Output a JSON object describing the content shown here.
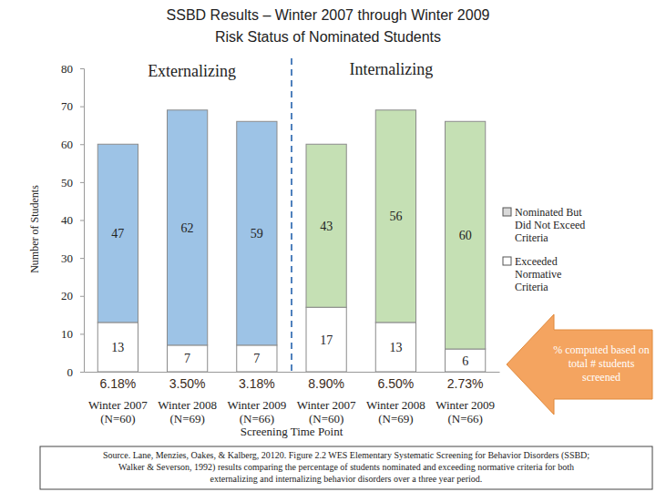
{
  "chart_data": {
    "type": "bar",
    "stacked": true,
    "data_labels": true,
    "title": "SSBD Results – Winter 2007 through Winter 2009",
    "subtitle": "Risk Status of Nominated Students",
    "y_label": "Number of Students",
    "x_label": "Screening Time Point",
    "categories": [
      "Winter 2007\n(N=60)",
      "Winter 2008\n(N=69)",
      "Winter 2009\n(N=66)",
      "Winter 2007\n(N=60)",
      "Winter 2008\n(N=69)",
      "Winter 2009\n(N=66)"
    ],
    "series": [
      {
        "name": "Nominated But Did Not Exceed Criteria",
        "color": "#d9d9d9",
        "colors": [
          "#9dc3e6",
          "#9dc3e6",
          "#9dc3e6",
          "#c5e0b4",
          "#c5e0b4",
          "#c5e0b4"
        ],
        "values": [
          47,
          62,
          59,
          43,
          56,
          60
        ]
      },
      {
        "name": "Exceeded Normative Criteria",
        "color": "#ffffff",
        "values": [
          13,
          7,
          7,
          17,
          13,
          6
        ]
      }
    ],
    "ylim": [
      0,
      80
    ],
    "yticks": [
      0,
      10,
      20,
      30,
      40,
      50,
      60,
      70,
      80
    ],
    "grid": false,
    "legend": "right",
    "annotations": {
      "groups": [
        "Externalizing",
        "Internalizing"
      ],
      "percent_labels": [
        "6.18%",
        "3.50%",
        "3.18%",
        "8.90%",
        "6.50%",
        "2.73%"
      ],
      "arrow_note": "% computed based on total # students screened",
      "source": "Source. Lane, Menzies, Oakes, & Kalberg, 20120. Figure 2.2 WES Elementary Systematic Screening for Behavior Disorders (SSBD; Walker & Severson, 1992) results comparing the percentage of students nominated and exceeding normative criteria for both externalizing and internalizing behavior disorders over a three year period."
    }
  }
}
